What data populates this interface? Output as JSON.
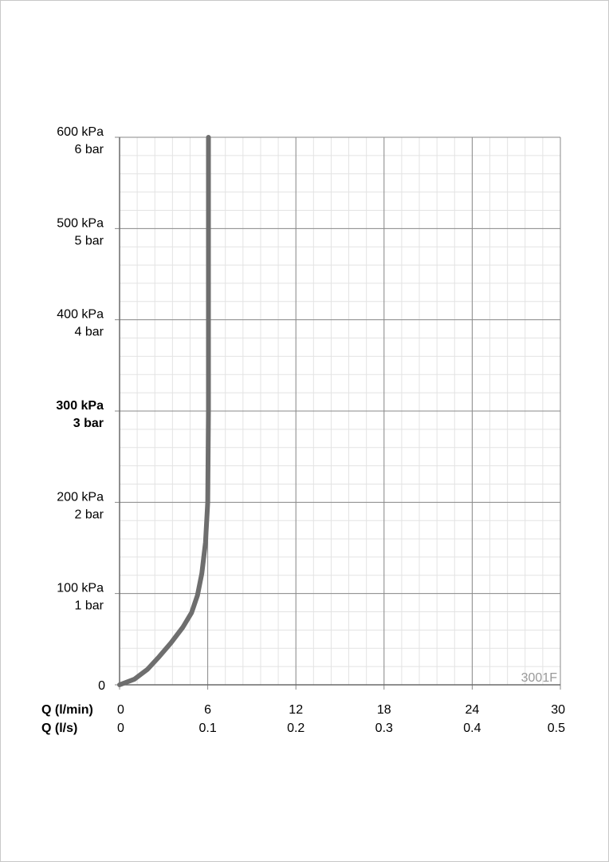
{
  "chart_data": {
    "type": "line",
    "title": "",
    "watermark": "3001F",
    "x": {
      "label_primary": "Q (l/min)",
      "label_secondary": "Q (l/s)",
      "range": [
        0,
        30
      ],
      "ticks": [
        0,
        6,
        12,
        18,
        24,
        30
      ],
      "tick_labels_primary": [
        "0",
        "6",
        "12",
        "18",
        "24",
        "30"
      ],
      "tick_labels_secondary": [
        "0",
        "0.1",
        "0.2",
        "0.3",
        "0.4",
        "0.5"
      ],
      "minor_step": 1.2
    },
    "y": {
      "unit": "kPa",
      "range": [
        0,
        600
      ],
      "ticks": [
        0,
        100,
        200,
        300,
        400,
        500,
        600
      ],
      "tick_labels_kpa": [
        "0",
        "100 kPa",
        "200 kPa",
        "300 kPa",
        "400 kPa",
        "500 kPa",
        "600 kPa"
      ],
      "tick_labels_bar": [
        "",
        "1 bar",
        "2 bar",
        "3 bar",
        "4 bar",
        "5 bar",
        "6 bar"
      ],
      "bold_tick": 300,
      "minor_step": 20
    },
    "grid": true,
    "series": [
      {
        "color": "#6e6e6e",
        "points": [
          [
            0,
            0
          ],
          [
            1,
            6
          ],
          [
            1.9,
            17
          ],
          [
            2.7,
            31
          ],
          [
            3.5,
            46
          ],
          [
            4.3,
            63
          ],
          [
            4.9,
            79
          ],
          [
            5.3,
            98
          ],
          [
            5.6,
            122
          ],
          [
            5.85,
            156
          ],
          [
            6.0,
            200
          ],
          [
            6.05,
            300
          ],
          [
            6.05,
            400
          ],
          [
            6.05,
            500
          ],
          [
            6.05,
            600
          ]
        ]
      }
    ]
  }
}
